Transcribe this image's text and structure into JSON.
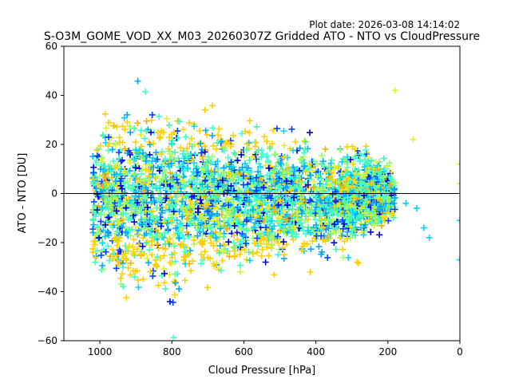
{
  "chart_data": {
    "type": "scatter",
    "title": "S-O3M_GOME_VOD_XX_M03_20260307Z Gridded ATO - NTO vs CloudPressure",
    "subtitle": "Plot date: 2026-03-08 14:14:02",
    "xlabel": "Cloud Pressure [hPa]",
    "ylabel": "ATO - NTO [DU]",
    "xlim": [
      1100,
      0
    ],
    "ylim": [
      -60,
      60
    ],
    "xticks": [
      1000,
      800,
      600,
      400,
      200,
      0
    ],
    "yticks": [
      -60,
      -40,
      -20,
      0,
      20,
      40,
      60
    ],
    "reference_line_y": 0,
    "marker": "+",
    "grid": false,
    "color_scale": [
      "#0000cc",
      "#0044ff",
      "#00a8ff",
      "#00d4ff",
      "#40ffd0",
      "#50f0a0",
      "#a0ff60",
      "#e0f030",
      "#ffd000",
      "#f0b000"
    ],
    "density_profile": [
      {
        "pressure": 1000,
        "center": -2,
        "spread": 14,
        "extent": 32
      },
      {
        "pressure": 900,
        "center": -2,
        "spread": 15,
        "extent": 55
      },
      {
        "pressure": 800,
        "center": -2,
        "spread": 15,
        "extent": 58
      },
      {
        "pressure": 700,
        "center": -2,
        "spread": 13,
        "extent": 55
      },
      {
        "pressure": 600,
        "center": -3,
        "spread": 12,
        "extent": 50
      },
      {
        "pressure": 500,
        "center": -3,
        "spread": 11,
        "extent": 48
      },
      {
        "pressure": 400,
        "center": -3,
        "spread": 10,
        "extent": 48
      },
      {
        "pressure": 300,
        "center": -2,
        "spread": 8,
        "extent": 40
      },
      {
        "pressure": 250,
        "center": 0,
        "spread": 7,
        "extent": 30
      },
      {
        "pressure": 200,
        "center": 0,
        "spread": 5,
        "extent": 18
      }
    ],
    "outliers": [
      {
        "x": 130,
        "y": 22
      },
      {
        "x": 180,
        "y": 42
      },
      {
        "x": 120,
        "y": -6
      },
      {
        "x": 100,
        "y": -14
      },
      {
        "x": 85,
        "y": -18
      },
      {
        "x": 150,
        "y": -4
      },
      {
        "x": 0,
        "y": 12
      },
      {
        "x": 0,
        "y": 4
      },
      {
        "x": 0,
        "y": -11
      },
      {
        "x": 0,
        "y": -27
      }
    ]
  }
}
